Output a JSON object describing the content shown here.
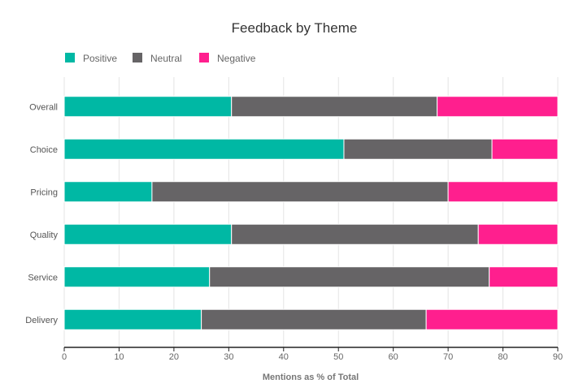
{
  "chart_data": {
    "type": "bar",
    "orientation": "horizontal",
    "stacked": true,
    "title": "Feedback by Theme",
    "xlabel": "Mentions as % of Total",
    "ylabel": "",
    "xlim": [
      0,
      90
    ],
    "xticks": [
      0,
      10,
      20,
      30,
      40,
      50,
      60,
      70,
      80,
      90
    ],
    "grid": true,
    "legend_position": "top-left",
    "categories": [
      "Overall",
      "Choice",
      "Pricing",
      "Quality",
      "Service",
      "Delivery"
    ],
    "series": [
      {
        "name": "Positive",
        "color": "#00b8a4",
        "values": [
          30.5,
          51.0,
          16.0,
          30.5,
          26.5,
          25.0
        ]
      },
      {
        "name": "Neutral",
        "color": "#666466",
        "values": [
          37.5,
          27.0,
          54.0,
          45.0,
          51.0,
          41.0
        ]
      },
      {
        "name": "Negative",
        "color": "#ff1f8e",
        "values": [
          22.0,
          12.0,
          20.0,
          14.5,
          12.5,
          24.0
        ]
      }
    ]
  }
}
